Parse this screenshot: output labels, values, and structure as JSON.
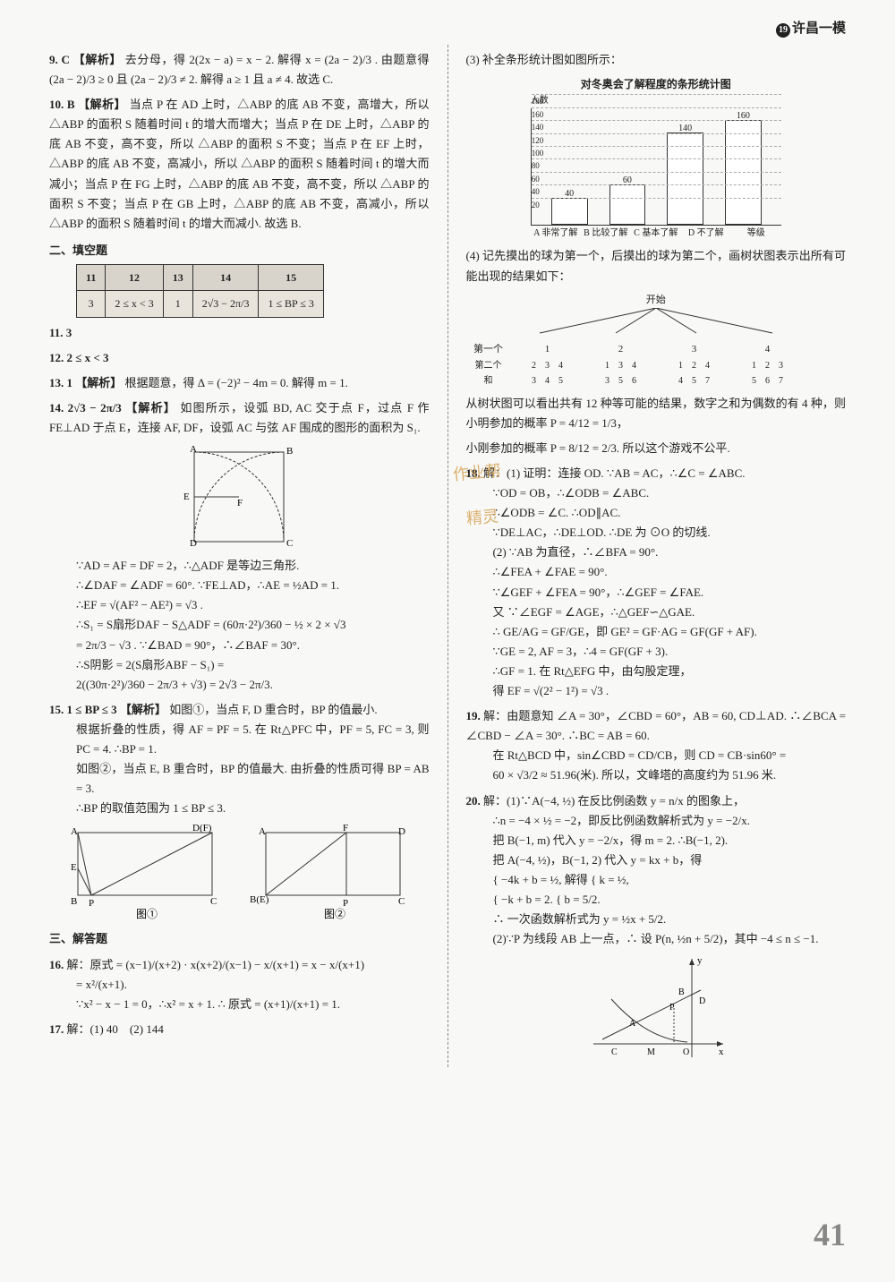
{
  "header": {
    "badge": "19",
    "title": "许昌一模"
  },
  "page_number": "41",
  "left": {
    "q9": {
      "num": "9. C",
      "tag": "【解析】",
      "text": "去分母，得 2(2x − a) = x − 2. 解得 x = (2a − 2)/3 . 由题意得 (2a − 2)/3 ≥ 0 且 (2a − 2)/3 ≠ 2. 解得 a ≥ 1 且 a ≠ 4. 故选 C."
    },
    "q10": {
      "num": "10. B",
      "tag": "【解析】",
      "text": "当点 P 在 AD 上时，△ABP 的底 AB 不变，高增大，所以 △ABP 的面积 S 随着时间 t 的增大而增大；当点 P 在 DE 上时，△ABP 的底 AB 不变，高不变，所以 △ABP 的面积 S 不变；当点 P 在 EF 上时，△ABP 的底 AB 不变，高减小，所以 △ABP 的面积 S 随着时间 t 的增大而减小；当点 P 在 FG 上时，△ABP 的底 AB 不变，高不变，所以 △ABP 的面积 S 不变；当点 P 在 GB 上时，△ABP 的底 AB 不变，高减小，所以 △ABP 的面积 S 随着时间 t 的增大而减小. 故选 B."
    },
    "sec2": "二、填空题",
    "table": {
      "headers": [
        "11",
        "12",
        "13",
        "14",
        "15"
      ],
      "row": [
        "3",
        "2 ≤ x < 3",
        "1",
        "2√3 − 2π/3",
        "1 ≤ BP ≤ 3"
      ]
    },
    "q11": "11. 3",
    "q12": "12. 2 ≤ x < 3",
    "q13": {
      "num": "13. 1",
      "tag": "【解析】",
      "text": "根据题意，得 Δ = (−2)² − 4m = 0. 解得 m = 1."
    },
    "q14": {
      "num": "14. 2√3 − 2π/3",
      "tag": "【解析】",
      "l1": "如图所示，设弧 BD, AC 交于点 F，过点 F 作 FE⊥AD 于点 E，连接 AF, DF，设弧 AC 与弦 AF 围成的图形的面积为 S₁.",
      "l2": "∵AD = AF = DF = 2，∴△ADF 是等边三角形.",
      "l3": "∴∠DAF = ∠ADF = 60°. ∵FE⊥AD，∴AE = ½AD = 1.",
      "l4": "∴EF = √(AF² − AE²) = √3 .",
      "l5": "∴S₁ = S扇形DAF − S△ADF = (60π·2²)/360 − ½ × 2 × √3",
      "l6": "= 2π/3 − √3 . ∵∠BAD = 90°，∴∠BAF = 30°.",
      "l7": "∴S阴影 = 2(S扇形ABF − S₁) =",
      "l8": "2((30π·2²)/360 − 2π/3 + √3) = 2√3 − 2π/3."
    },
    "q15": {
      "num": "15. 1 ≤ BP ≤ 3",
      "tag": "【解析】",
      "l1": "如图①，当点 F, D 重合时，BP 的值最小.",
      "l2": "根据折叠的性质，得 AF = PF = 5. 在 Rt△PFC 中，PF = 5, FC = 3, 则 PC = 4. ∴BP = 1.",
      "l3": "如图②，当点 E, B 重合时，BP 的值最大. 由折叠的性质可得 BP = AB = 3.",
      "l4": "∴BP 的取值范围为 1 ≤ BP ≤ 3."
    },
    "sec3": "三、解答题",
    "q16": {
      "num": "16.",
      "pre": "解：原式 = ",
      "l1": "(x−1)/(x+2) · x(x+2)/(x−1) − x/(x+1) = x − x/(x+1)",
      "l2": "= x²/(x+1).",
      "l3": "∵x² − x − 1 = 0，∴x² = x + 1. ∴ 原式 = (x+1)/(x+1) = 1."
    },
    "q17": {
      "num": "17.",
      "text": "解：(1) 40　(2) 144"
    }
  },
  "right": {
    "q17_3": "(3) 补全条形统计图如图所示：",
    "chart": {
      "title": "对冬奥会了解程度的条形统计图",
      "ylabel": "人数",
      "categories": [
        "A 非常了解",
        "B 比较了解",
        "C 基本了解",
        "D 不了解"
      ],
      "xlabel_suffix": "等级",
      "values": [
        40,
        60,
        140,
        160
      ],
      "ymax": 180,
      "ytick": 20,
      "bar_color": "#ffffff",
      "border": "#333333",
      "grid": "#bbbbbb"
    },
    "q17_4": "(4) 记先摸出的球为第一个，后摸出的球为第二个，画树状图表示出所有可能出现的结果如下：",
    "tree": {
      "root": "开始",
      "l1_label": "第一个",
      "l1": [
        "1",
        "2",
        "3",
        "4"
      ],
      "l2_label": "第二个",
      "l2": [
        [
          "2",
          "3",
          "4"
        ],
        [
          "1",
          "3",
          "4"
        ],
        [
          "1",
          "2",
          "4"
        ],
        [
          "1",
          "2",
          "3"
        ]
      ],
      "l3_label": "和",
      "l3": [
        [
          "3",
          "4",
          "5"
        ],
        [
          "3",
          "5",
          "6"
        ],
        [
          "4",
          "5",
          "7"
        ],
        [
          "5",
          "6",
          "7"
        ]
      ]
    },
    "q17_5": "从树状图可以看出共有 12 种等可能的结果，数字之和为偶数的有 4 种，则小明参加的概率 P = 4/12 = 1/3，",
    "q17_6": "小刚参加的概率 P = 8/12 = 2/3. 所以这个游戏不公平.",
    "q18": {
      "num": "18.",
      "pre": "解：(1) 证明：连接 OD. ∵AB = AC，∴∠C = ∠ABC.",
      "l1": "∵OD = OB，∴∠ODB = ∠ABC.",
      "l2": "∴∠ODB = ∠C. ∴OD∥AC.",
      "l3": "∵DE⊥AC，∴DE⊥OD. ∴DE 为 ⊙O 的切线.",
      "l4": "(2) ∵AB 为直径，∴∠BFA = 90°.",
      "l5": "∴∠FEA + ∠FAE = 90°.",
      "l6": "∵∠GEF + ∠FEA = 90°，∴∠GEF = ∠FAE.",
      "l7": "又 ∵∠EGF = ∠AGE，∴△GEF∽△GAE.",
      "l8": "∴ GE/AG = GF/GE，即 GE² = GF·AG = GF(GF + AF).",
      "l9": "∵GE = 2, AF = 3，∴4 = GF(GF + 3).",
      "l10": "∴GF = 1. 在 Rt△EFG 中，由勾股定理，",
      "l11": "得 EF = √(2² − 1²) = √3 ."
    },
    "q19": {
      "num": "19.",
      "l1": "解：由题意知 ∠A = 30°，∠CBD = 60°，AB = 60, CD⊥AD. ∴∠BCA = ∠CBD − ∠A = 30°. ∴BC = AB = 60.",
      "l2": "在 Rt△BCD 中，sin∠CBD = CD/CB，则 CD = CB·sin60° =",
      "l3": "60 × √3/2 ≈ 51.96(米). 所以，文峰塔的高度约为 51.96 米."
    },
    "q20": {
      "num": "20.",
      "l1": "解：(1)∵A(−4, ½) 在反比例函数 y = n/x 的图象上，",
      "l2": "∴n = −4 × ½ = −2，即反比例函数解析式为 y = −2/x.",
      "l3": "把 B(−1, m) 代入 y = −2/x，得 m = 2. ∴B(−1, 2).",
      "l4": "把 A(−4, ½)，B(−1, 2) 代入 y = kx + b，得",
      "l5": "{ −4k + b = ½,  解得 { k = ½,",
      "l6": "{ −k + b = 2.        { b = 5/2.",
      "l7": "∴ 一次函数解析式为 y = ½x + 5/2.",
      "l8": "(2)∵P 为线段 AB 上一点，∴ 设 P(n, ½n + 5/2)，其中 −4 ≤ n ≤ −1."
    }
  },
  "watermarks": {
    "w1": "作业帮",
    "w2": "精灵"
  }
}
